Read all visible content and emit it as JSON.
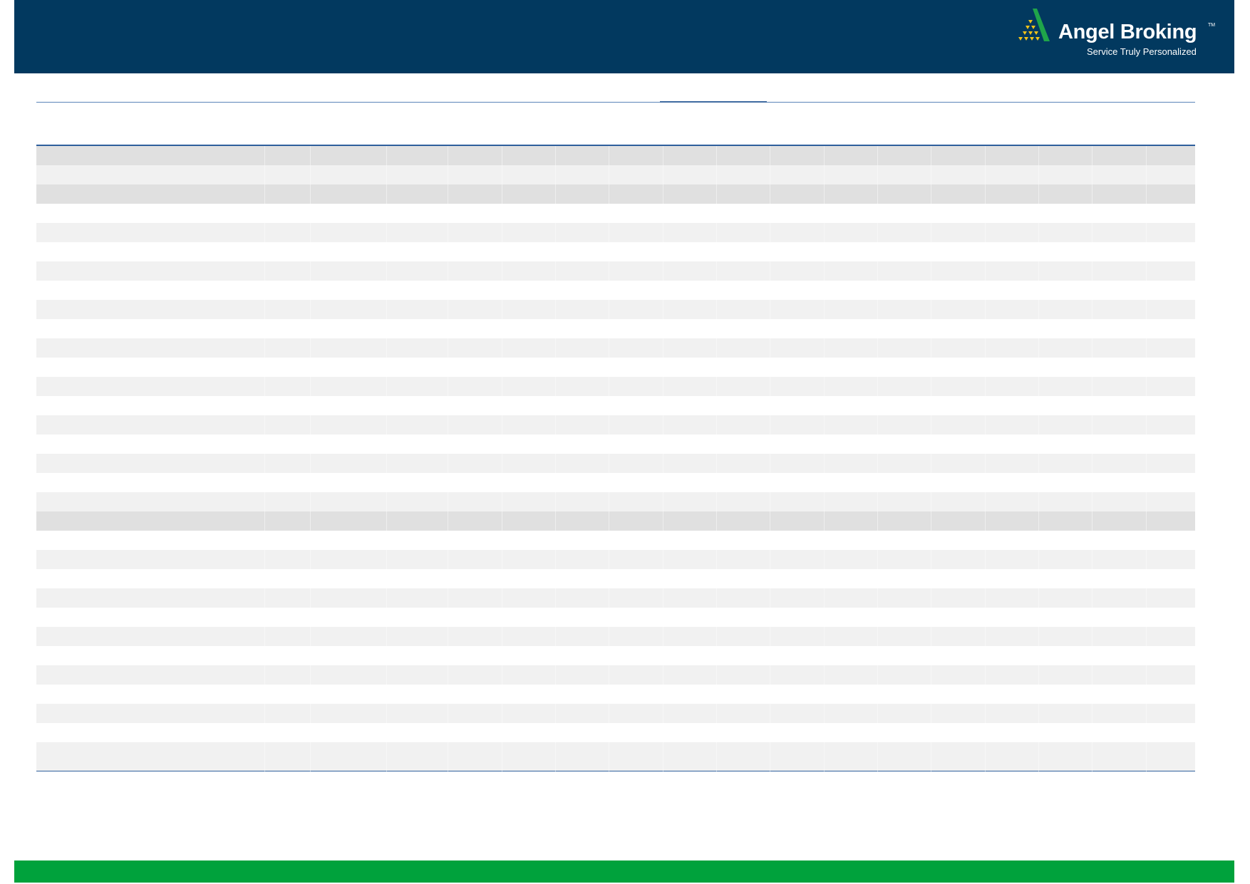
{
  "header": {
    "brand": "Angel Broking",
    "trademark": "TM",
    "tagline": "Service Truly Personalized",
    "logo_icon": "pyramid-triangle-icon",
    "background_color": "#02395f"
  },
  "table": {
    "row_pattern": [
      "dark",
      "light",
      "dark",
      "white",
      "light",
      "white",
      "light",
      "white",
      "light",
      "white",
      "light",
      "white",
      "light",
      "white",
      "light",
      "white",
      "light",
      "white",
      "light",
      "dark",
      "white",
      "light",
      "white",
      "light",
      "white",
      "light",
      "white",
      "light",
      "white",
      "light",
      "white",
      "light"
    ],
    "colors": {
      "dark": "#e0e0e0",
      "light": "#f1f1f1",
      "rule": "#2e5f9c"
    }
  },
  "footer": {
    "color": "#00a23c"
  }
}
